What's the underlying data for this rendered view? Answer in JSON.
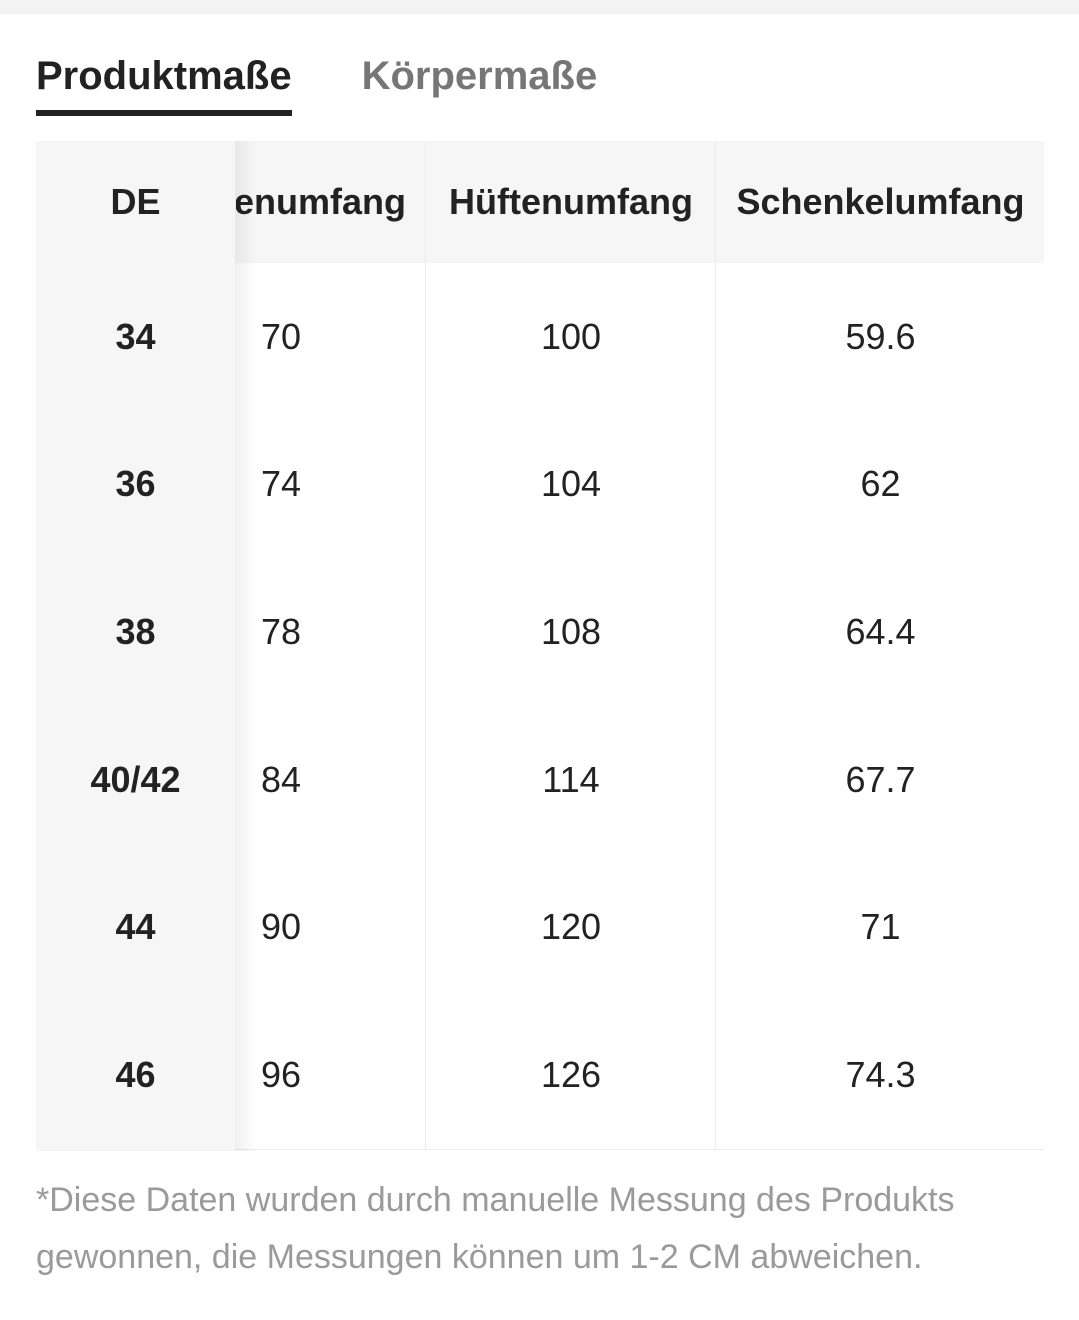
{
  "tabs": [
    {
      "label": "Produktmaße",
      "active": true
    },
    {
      "label": "Körpermaße",
      "active": false
    }
  ],
  "table": {
    "headers": {
      "size": "DE",
      "waist": "enumfang",
      "hip": "Hüftenumfang",
      "thigh": "Schenkelumfang"
    },
    "rows": [
      {
        "size": "34",
        "waist": "70",
        "hip": "100",
        "thigh": "59.6"
      },
      {
        "size": "36",
        "waist": "74",
        "hip": "104",
        "thigh": "62"
      },
      {
        "size": "38",
        "waist": "78",
        "hip": "108",
        "thigh": "64.4"
      },
      {
        "size": "40/42",
        "waist": "84",
        "hip": "114",
        "thigh": "67.7"
      },
      {
        "size": "44",
        "waist": "90",
        "hip": "120",
        "thigh": "71"
      },
      {
        "size": "46",
        "waist": "96",
        "hip": "126",
        "thigh": "74.3"
      }
    ]
  },
  "footnote": "*Diese Daten wurden durch manuelle Messung des Produkts gewonnen, die Messungen können um 1-2 CM abweichen.",
  "colors": {
    "text": "#222222",
    "inactive_tab": "#767676",
    "header_bg": "#f6f6f6",
    "border": "#ebebeb",
    "footnote": "#9a9a9a"
  }
}
